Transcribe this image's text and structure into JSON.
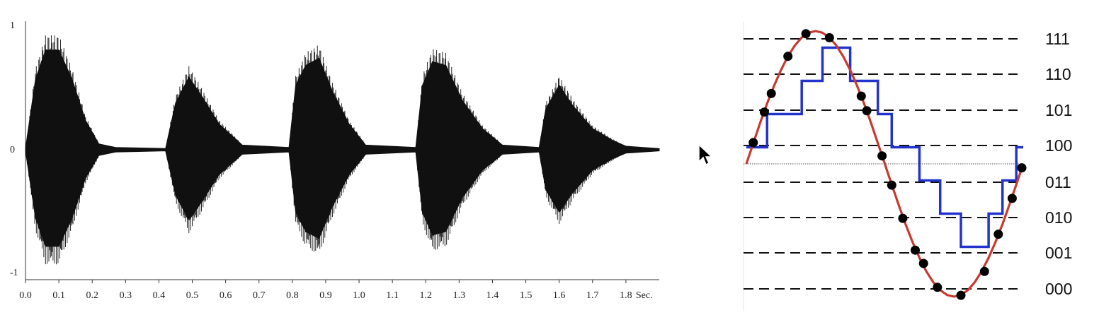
{
  "chart_data": [
    {
      "type": "area",
      "y_ticks": [
        "1",
        "0",
        "-1"
      ],
      "y_tick_values": [
        1,
        0,
        -1
      ],
      "ylim": [
        -1,
        1
      ],
      "xlim": [
        0,
        1.9
      ],
      "x_ticks": [
        "0.0",
        "0.1",
        "0.2",
        "0.3",
        "0.4",
        "0.5",
        "0.6",
        "0.7",
        "0.8",
        "0.9",
        "1.0",
        "1.1",
        "1.2",
        "1.3",
        "1.4",
        "1.5",
        "1.6",
        "1.7",
        "1.8"
      ],
      "x_tick_values": [
        0,
        0.1,
        0.2,
        0.3,
        0.4,
        0.5,
        0.6,
        0.7,
        0.8,
        0.9,
        1.0,
        1.1,
        1.2,
        1.3,
        1.4,
        1.5,
        1.6,
        1.7,
        1.8
      ],
      "x_unit": "Sec.",
      "envelope": [
        {
          "x": 0.0,
          "y": 0.01
        },
        {
          "x": 0.03,
          "y": 0.6
        },
        {
          "x": 0.06,
          "y": 0.85
        },
        {
          "x": 0.1,
          "y": 0.85
        },
        {
          "x": 0.14,
          "y": 0.6
        },
        {
          "x": 0.18,
          "y": 0.25
        },
        {
          "x": 0.22,
          "y": 0.05
        },
        {
          "x": 0.27,
          "y": 0.02
        },
        {
          "x": 0.42,
          "y": 0.01
        },
        {
          "x": 0.45,
          "y": 0.4
        },
        {
          "x": 0.49,
          "y": 0.62
        },
        {
          "x": 0.53,
          "y": 0.45
        },
        {
          "x": 0.58,
          "y": 0.22
        },
        {
          "x": 0.65,
          "y": 0.04
        },
        {
          "x": 0.79,
          "y": 0.02
        },
        {
          "x": 0.81,
          "y": 0.55
        },
        {
          "x": 0.84,
          "y": 0.72
        },
        {
          "x": 0.88,
          "y": 0.78
        },
        {
          "x": 0.92,
          "y": 0.5
        },
        {
          "x": 0.97,
          "y": 0.22
        },
        {
          "x": 1.02,
          "y": 0.04
        },
        {
          "x": 1.17,
          "y": 0.02
        },
        {
          "x": 1.19,
          "y": 0.55
        },
        {
          "x": 1.22,
          "y": 0.75
        },
        {
          "x": 1.26,
          "y": 0.72
        },
        {
          "x": 1.31,
          "y": 0.42
        },
        {
          "x": 1.37,
          "y": 0.18
        },
        {
          "x": 1.43,
          "y": 0.04
        },
        {
          "x": 1.54,
          "y": 0.02
        },
        {
          "x": 1.56,
          "y": 0.35
        },
        {
          "x": 1.6,
          "y": 0.55
        },
        {
          "x": 1.64,
          "y": 0.38
        },
        {
          "x": 1.7,
          "y": 0.18
        },
        {
          "x": 1.76,
          "y": 0.08
        },
        {
          "x": 1.8,
          "y": 0.03
        },
        {
          "x": 1.9,
          "y": 0.01
        }
      ]
    },
    {
      "type": "line",
      "levels": [
        "111",
        "110",
        "101",
        "100",
        "011",
        "010",
        "001",
        "000"
      ],
      "ylim": [
        -1,
        1
      ],
      "series": [
        {
          "role": "analog-signal",
          "color": "#c63a32",
          "x": [
            0,
            0.05,
            0.1,
            0.15,
            0.2,
            0.25,
            0.3,
            0.35,
            0.4,
            0.45,
            0.5,
            0.55,
            0.6,
            0.65,
            0.7,
            0.75,
            0.8,
            0.85,
            0.9,
            0.95,
            1.0,
            1.05,
            1.1,
            1.15,
            1.2,
            1.25,
            1.3,
            1.35,
            1.4,
            1.45,
            1.5,
            1.55,
            1.6,
            1.65,
            1.7,
            1.75,
            1.8,
            1.85,
            1.9,
            1.95,
            2.0
          ],
          "y": [
            0,
            0.156,
            0.309,
            0.454,
            0.588,
            0.707,
            0.809,
            0.891,
            0.951,
            0.988,
            1.0,
            0.988,
            0.951,
            0.891,
            0.809,
            0.707,
            0.588,
            0.454,
            0.309,
            0.156,
            0,
            -0.156,
            -0.309,
            -0.454,
            -0.588,
            -0.707,
            -0.809,
            -0.891,
            -0.951,
            -0.988,
            -1.0,
            -0.988,
            -0.951,
            -0.891,
            -0.809,
            -0.707,
            -0.588,
            -0.454,
            -0.309,
            -0.156,
            0
          ]
        },
        {
          "role": "sample-points",
          "color": "#000000",
          "x": [
            0.05,
            0.13,
            0.18,
            0.3,
            0.43,
            0.6,
            0.83,
            0.87,
            0.98,
            1.05,
            1.13,
            1.22,
            1.28,
            1.38,
            1.55,
            1.72,
            1.82,
            1.92,
            1.99
          ],
          "y": [
            0.16,
            0.39,
            0.53,
            0.81,
            0.98,
            0.95,
            0.51,
            0.4,
            0.06,
            -0.16,
            -0.41,
            -0.65,
            -0.75,
            -0.93,
            -0.99,
            -0.81,
            -0.53,
            -0.26,
            -0.03
          ]
        },
        {
          "role": "quantized-signal",
          "color": "#2233cc",
          "x": [
            0,
            0.15,
            0.15,
            0.4,
            0.4,
            0.55,
            0.55,
            0.75,
            0.75,
            0.95,
            0.95,
            1.05,
            1.05,
            1.25,
            1.25,
            1.4,
            1.4,
            1.55,
            1.55,
            1.75,
            1.75,
            1.85,
            1.85,
            1.95,
            1.95,
            2.0
          ],
          "y": [
            0.125,
            0.125,
            0.375,
            0.375,
            0.625,
            0.625,
            0.875,
            0.875,
            0.625,
            0.625,
            0.375,
            0.375,
            0.125,
            0.125,
            -0.125,
            -0.125,
            -0.375,
            -0.375,
            -0.625,
            -0.625,
            -0.375,
            -0.375,
            -0.125,
            -0.125,
            0.125,
            0.125
          ]
        }
      ]
    }
  ]
}
